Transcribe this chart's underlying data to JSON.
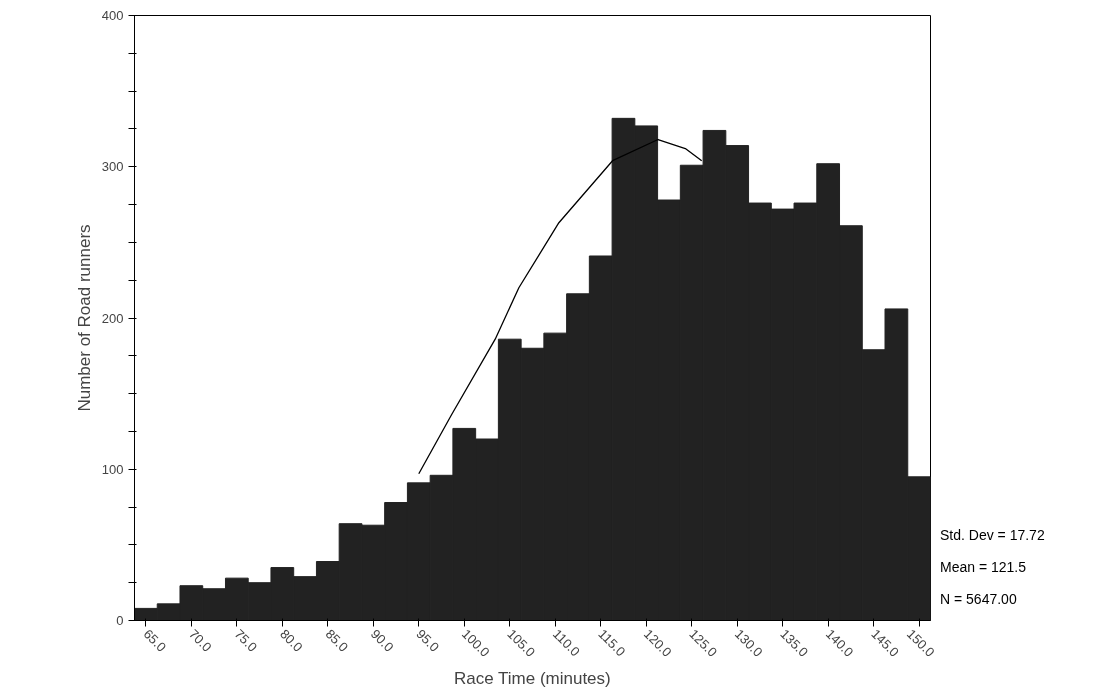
{
  "chart_data": {
    "type": "histogram",
    "xlabel": "Race Time (minutes)",
    "ylabel": "Number of Road runners",
    "bins": [
      63.75,
      66.25,
      68.75,
      71.25,
      73.75,
      76.25,
      78.75,
      81.25,
      83.75,
      86.25,
      88.75,
      91.25,
      93.75,
      96.25,
      98.75,
      101.25,
      103.75,
      106.25,
      108.75,
      111.25,
      113.75,
      116.25,
      118.75,
      121.25,
      123.75,
      126.25,
      128.75,
      131.25,
      133.75,
      136.25,
      138.75,
      141.25,
      143.75,
      146.25,
      148.75,
      151.25
    ],
    "values": [
      8,
      11,
      23,
      21,
      28,
      25,
      35,
      29,
      39,
      64,
      63,
      78,
      91,
      96,
      127,
      120,
      186,
      180,
      190,
      216,
      241,
      332,
      327,
      278,
      301,
      324,
      314,
      276,
      272,
      276,
      302,
      261,
      179,
      206,
      95
    ],
    "color": "#222222",
    "series": [
      {
        "type": "line",
        "color": "#000000",
        "x": [
          95.0,
          98.6,
          103.4,
          106,
          110.4,
          116.3,
          121.3,
          124.3,
          126.1
        ],
        "values": [
          97,
          136,
          186,
          220,
          263,
          304,
          318,
          312,
          304
        ]
      }
    ],
    "xlim": [
      63.75,
      151.25
    ],
    "ylim": [
      0,
      400
    ],
    "xticks": [
      {
        "value": 65,
        "label": "65.0"
      },
      {
        "value": 70,
        "label": "70.0"
      },
      {
        "value": 75,
        "label": "75.0"
      },
      {
        "value": 80,
        "label": "80.0"
      },
      {
        "value": 85,
        "label": "85.0"
      },
      {
        "value": 90,
        "label": "90.0"
      },
      {
        "value": 95,
        "label": "95.0"
      },
      {
        "value": 100,
        "label": "100.0"
      },
      {
        "value": 105,
        "label": "105.0"
      },
      {
        "value": 110,
        "label": "110.0"
      },
      {
        "value": 115,
        "label": "115.0"
      },
      {
        "value": 120,
        "label": "120.0"
      },
      {
        "value": 125,
        "label": "125.0"
      },
      {
        "value": 130,
        "label": "130.0"
      },
      {
        "value": 135,
        "label": "135.0"
      },
      {
        "value": 140,
        "label": "140.0"
      },
      {
        "value": 145,
        "label": "145.0"
      },
      {
        "value": 150,
        "label": "150.0"
      }
    ],
    "yticks": [
      0,
      {
        "value": 25,
        "label": null
      },
      {
        "value": 50,
        "label": null
      },
      {
        "value": 75,
        "label": null
      },
      100,
      {
        "value": 125,
        "label": null
      },
      {
        "value": 150,
        "label": null
      },
      {
        "value": 175,
        "label": null
      },
      200,
      {
        "value": 225,
        "label": null
      },
      {
        "value": 250,
        "label": null
      },
      {
        "value": 275,
        "label": null
      },
      300,
      {
        "value": 325,
        "label": null
      },
      {
        "value": 350,
        "label": null
      },
      {
        "value": 375,
        "label": null
      },
      400
    ],
    "annotations": [
      "Std. Dev = 17.72",
      "Mean = 121.5",
      "N = 5647.00"
    ],
    "grid": false
  }
}
